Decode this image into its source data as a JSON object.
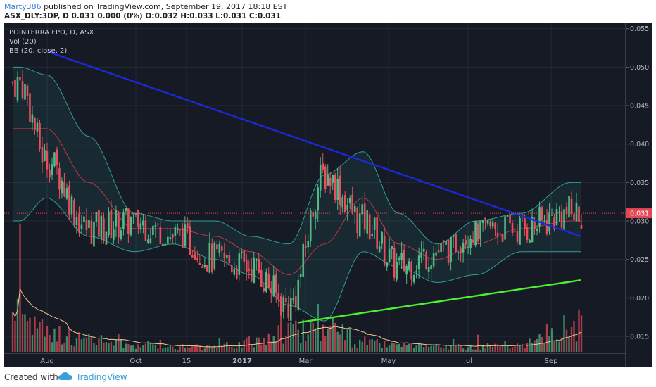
{
  "header": {
    "author": "Marty386",
    "published": "published on TradingView.com, September 19, 2017 18:18 EST",
    "quote": "ASX_DLY:3DP, D  0.031  0.000 (0%)  O:0.032  H:0.033  L:0.031  C:0.031"
  },
  "legend": {
    "symbol": "POINTERRA FPO, D, ASX",
    "vol": "Vol (20)",
    "bb": "BB (20, close, 2)"
  },
  "footer": {
    "created": "Created with",
    "brand": "TradingView"
  },
  "colors": {
    "background": "#151a24",
    "up": "#53b987",
    "down": "#eb4d5c",
    "bb_band": "#2f9e92",
    "bb_basis": "#c2334a",
    "trendline_down": "#1a2adb",
    "trendline_up": "#4cf030",
    "vol_ma": "#f2c78d",
    "price_tag": "#e34655"
  },
  "chart_data": {
    "type": "candlestick",
    "y_axis": {
      "ticks": [
        "0.055",
        "0.050",
        "0.045",
        "0.040",
        "0.035",
        "0.030",
        "0.025",
        "0.020",
        "0.015"
      ],
      "range": [
        0.0128,
        0.0558
      ]
    },
    "x_axis": {
      "ticks": [
        "Aug",
        "Oct",
        "15",
        "2017",
        "Mar",
        "May",
        "Jul",
        "Sep"
      ]
    },
    "last_price": "0.031",
    "candles_by_period": [
      {
        "period": "Jul 2016 (late)",
        "open": 0.03,
        "high": 0.053,
        "low": 0.025,
        "close": 0.048
      },
      {
        "period": "Aug 2016",
        "open": 0.048,
        "high": 0.05,
        "low": 0.034,
        "close": 0.038
      },
      {
        "period": "Sep 2016",
        "open": 0.038,
        "high": 0.039,
        "low": 0.027,
        "close": 0.029
      },
      {
        "period": "Oct 2016",
        "open": 0.029,
        "high": 0.031,
        "low": 0.027,
        "close": 0.03
      },
      {
        "period": "Nov 2016",
        "open": 0.03,
        "high": 0.031,
        "low": 0.027,
        "close": 0.028
      },
      {
        "period": "Dec 2016",
        "open": 0.028,
        "high": 0.029,
        "low": 0.023,
        "close": 0.025
      },
      {
        "period": "Jan 2017",
        "open": 0.025,
        "high": 0.026,
        "low": 0.022,
        "close": 0.024
      },
      {
        "period": "Feb 2017",
        "open": 0.024,
        "high": 0.025,
        "low": 0.017,
        "close": 0.019
      },
      {
        "period": "Mar 2017",
        "open": 0.019,
        "high": 0.039,
        "low": 0.019,
        "close": 0.036
      },
      {
        "period": "Apr 2017",
        "open": 0.036,
        "high": 0.038,
        "low": 0.028,
        "close": 0.03
      },
      {
        "period": "May 2017",
        "open": 0.03,
        "high": 0.031,
        "low": 0.022,
        "close": 0.024
      },
      {
        "period": "Jun 2017",
        "open": 0.024,
        "high": 0.027,
        "low": 0.02,
        "close": 0.026
      },
      {
        "period": "Jul 2017",
        "open": 0.026,
        "high": 0.03,
        "low": 0.025,
        "close": 0.029
      },
      {
        "period": "Aug 2017",
        "open": 0.029,
        "high": 0.031,
        "low": 0.027,
        "close": 0.029
      },
      {
        "period": "Sep 2017",
        "open": 0.029,
        "high": 0.036,
        "low": 0.029,
        "close": 0.031
      }
    ],
    "bollinger_bands": {
      "upper_by_period": [
        0.05,
        0.049,
        0.041,
        0.031,
        0.03,
        0.03,
        0.028,
        0.027,
        0.036,
        0.039,
        0.031,
        0.027,
        0.03,
        0.031,
        0.035
      ],
      "basis_by_period": [
        0.042,
        0.042,
        0.035,
        0.029,
        0.029,
        0.028,
        0.026,
        0.023,
        0.027,
        0.033,
        0.027,
        0.025,
        0.027,
        0.029,
        0.03
      ],
      "lower_by_period": [
        0.03,
        0.033,
        0.028,
        0.026,
        0.027,
        0.025,
        0.023,
        0.019,
        0.017,
        0.026,
        0.024,
        0.022,
        0.023,
        0.026,
        0.026
      ]
    },
    "trendlines": [
      {
        "name": "resistance",
        "from": {
          "x": "Aug 2016",
          "y": 0.052
        },
        "to": {
          "x": "Sep 2017",
          "y": 0.028
        }
      },
      {
        "name": "support",
        "from": {
          "x": "Feb 2017",
          "y": 0.0168
        },
        "to": {
          "x": "Sep 2017",
          "y": 0.0223
        }
      }
    ],
    "volume": {
      "note": "relative heights, 0-1",
      "by_period": [
        0.9,
        0.4,
        0.25,
        0.15,
        0.12,
        0.1,
        0.2,
        0.45,
        0.55,
        0.2,
        0.12,
        0.1,
        0.12,
        0.15,
        0.55
      ]
    }
  }
}
